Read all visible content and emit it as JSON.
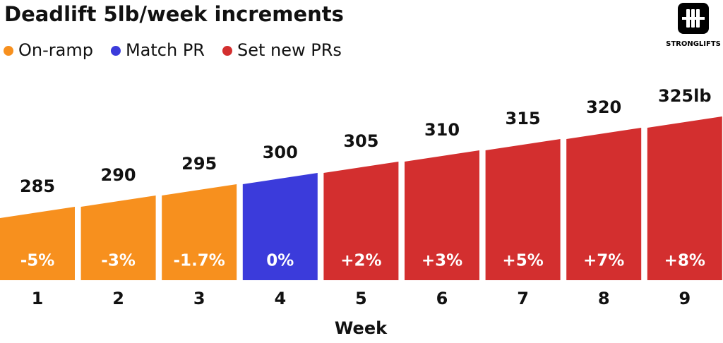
{
  "chart_data": {
    "type": "bar",
    "title": "Deadlift 5lb/week increments",
    "brand": "STRONGLIFTS",
    "legend": [
      {
        "name": "On-ramp",
        "color": "#f7901e"
      },
      {
        "name": "Match PR",
        "color": "#3b3bdb"
      },
      {
        "name": "Set new PRs",
        "color": "#d32f2f"
      }
    ],
    "x_label": "Week",
    "categories": [
      "1",
      "2",
      "3",
      "4",
      "5",
      "6",
      "7",
      "8",
      "9"
    ],
    "values": [
      285,
      290,
      295,
      300,
      305,
      310,
      315,
      320,
      325
    ],
    "value_labels": [
      "285",
      "290",
      "295",
      "300",
      "305",
      "310",
      "315",
      "320",
      "325lb"
    ],
    "change_labels": [
      "-5%",
      "-3%",
      "-1.7%",
      "0%",
      "+2%",
      "+3%",
      "+5%",
      "+7%",
      "+8%"
    ],
    "colors": [
      "#f7901e",
      "#f7901e",
      "#f7901e",
      "#3b3bdb",
      "#d32f2f",
      "#d32f2f",
      "#d32f2f",
      "#d32f2f",
      "#d32f2f"
    ],
    "ylim": [
      255,
      330
    ]
  }
}
